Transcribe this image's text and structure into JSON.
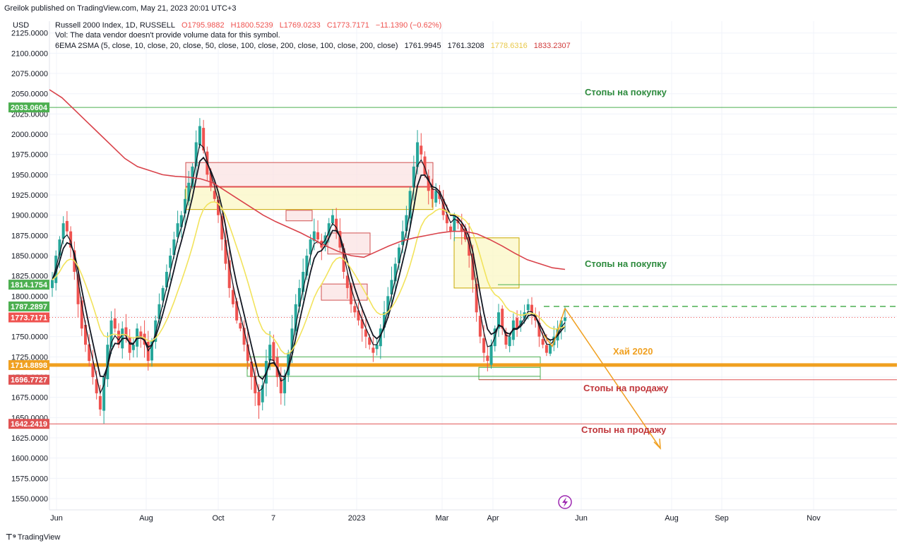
{
  "header": {
    "publisher": "Greilok published on TradingView.com, May 21, 2023 20:01 UTC+3",
    "currency": "USD",
    "symbol": "Russell 2000 Index, 1D, RUSSELL",
    "ohlc": {
      "o": "O1795.9882",
      "h": "H1800.5239",
      "l": "L1769.0233",
      "c": "C1773.7171",
      "chg": "−11.1390 (−0.62%)"
    },
    "vol_note": "Vol: The data vendor doesn't provide volume data for this symbol.",
    "ma_label": "6EMA 2SMA (5, close, 10, close, 20, close, 50, close, 100, close, 200, close, 100, close, 200, close)",
    "ma_values": [
      {
        "v": "1761.9945",
        "color": "#131722"
      },
      {
        "v": "1761.3208",
        "color": "#131722"
      },
      {
        "v": "1778.6316",
        "color": "#e8c84a"
      },
      {
        "v": "1833.2307",
        "color": "#d03a3a"
      }
    ]
  },
  "footer": {
    "brand": "TradingView"
  },
  "colors": {
    "up": "#26a69a",
    "down": "#ef5350",
    "ema_fast": "#131722",
    "ema_mid": "#f2e35c",
    "ma_slow": "#d9424a",
    "green_line": "#4caf50",
    "red_line": "#e05252",
    "orange": "#f0a020",
    "orange_dark": "#e08a00"
  },
  "chart_data": {
    "type": "candlestick",
    "title": "Russell 2000 Index, 1D, RUSSELL",
    "ylim": [
      1535,
      2135
    ],
    "y_ticks": [
      "1550.0000",
      "1575.0000",
      "1600.0000",
      "1625.0000",
      "1650.0000",
      "1675.0000",
      "1700.0000",
      "1725.0000",
      "1750.0000",
      "1775.0000",
      "1800.0000",
      "1825.0000",
      "1850.0000",
      "1875.0000",
      "1900.0000",
      "1925.0000",
      "1950.0000",
      "1975.0000",
      "2000.0000",
      "2025.0000",
      "2050.0000",
      "2075.0000",
      "2100.0000",
      "2125.0000"
    ],
    "x_ticks": [
      "Jun",
      "Aug",
      "Oct",
      "7",
      "2023",
      "Mar",
      "Apr",
      "Jun",
      "Aug",
      "Sep",
      "Nov"
    ],
    "grid": true,
    "price_tags": [
      {
        "label": "2033.0604",
        "value": 2033.06,
        "color": "#4caf50"
      },
      {
        "label": "1814.1754",
        "value": 1814.18,
        "color": "#4caf50"
      },
      {
        "label": "1787.2897",
        "value": 1787.29,
        "color": "#4caf50"
      },
      {
        "label": "1773.7171",
        "value": 1773.72,
        "color": "#ef5350"
      },
      {
        "label": "1714.8898",
        "value": 1714.89,
        "color": "#f0a020"
      },
      {
        "label": "1696.7727",
        "value": 1696.77,
        "color": "#e05252"
      },
      {
        "label": "1642.2419",
        "value": 1642.24,
        "color": "#e05252"
      }
    ],
    "annotations": [
      {
        "text": "Стопы на покупку",
        "value": 2033.06,
        "color": "#2e8b3e"
      },
      {
        "text": "Стопы на покупку",
        "value": 1814.18,
        "color": "#2e8b3e"
      },
      {
        "text": "Стопы на продажу",
        "value": 1696.77,
        "color": "#c0353a"
      },
      {
        "text": "Стопы на продажу",
        "value": 1642.24,
        "color": "#c0353a"
      },
      {
        "text": "Хай 2020",
        "value": 1714.89,
        "color": "#f0a020"
      }
    ],
    "closes": [
      1820,
      1850,
      1870,
      1890,
      1880,
      1860,
      1830,
      1790,
      1760,
      1740,
      1720,
      1700,
      1680,
      1660,
      1700,
      1740,
      1770,
      1760,
      1740,
      1760,
      1750,
      1730,
      1740,
      1760,
      1750,
      1740,
      1720,
      1745,
      1770,
      1790,
      1810,
      1830,
      1850,
      1870,
      1890,
      1900,
      1920,
      1940,
      1960,
      1990,
      2010,
      1980,
      1950,
      1935,
      1920,
      1900,
      1870,
      1840,
      1810,
      1790,
      1770,
      1760,
      1740,
      1720,
      1700,
      1680,
      1665,
      1690,
      1720,
      1740,
      1720,
      1700,
      1680,
      1700,
      1730,
      1760,
      1790,
      1810,
      1830,
      1850,
      1870,
      1880,
      1870,
      1860,
      1875,
      1890,
      1900,
      1880,
      1860,
      1830,
      1810,
      1790,
      1780,
      1770,
      1760,
      1750,
      1740,
      1730,
      1740,
      1760,
      1780,
      1800,
      1820,
      1840,
      1860,
      1880,
      1900,
      1930,
      1960,
      1990,
      1975,
      1950,
      1930,
      1920,
      1930,
      1920,
      1900,
      1890,
      1880,
      1900,
      1890,
      1880,
      1870,
      1850,
      1820,
      1780,
      1750,
      1730,
      1720,
      1740,
      1760,
      1780,
      1760,
      1740,
      1750,
      1770,
      1760,
      1770,
      1780,
      1790,
      1780,
      1770,
      1750,
      1740,
      1730,
      1740,
      1750,
      1760,
      1770,
      1773.7
    ]
  },
  "drawings": {
    "boxes": [
      {
        "fill": "#fbe3e3",
        "stroke": "#d05050"
      },
      {
        "fill": "#fbf7c4",
        "stroke": "#c9a800"
      },
      {
        "fill": "#fbe3e3",
        "stroke": "#d05050"
      },
      {
        "fill": "#fbe3e3",
        "stroke": "#d05050"
      },
      {
        "fill": "#fbe3e3",
        "stroke": "#d05050"
      },
      {
        "fill": "#fbf7c4",
        "stroke": "#c9a800"
      },
      {
        "fill": "none",
        "stroke": "#4caf50"
      },
      {
        "fill": "none",
        "stroke": "#4caf50"
      }
    ]
  }
}
